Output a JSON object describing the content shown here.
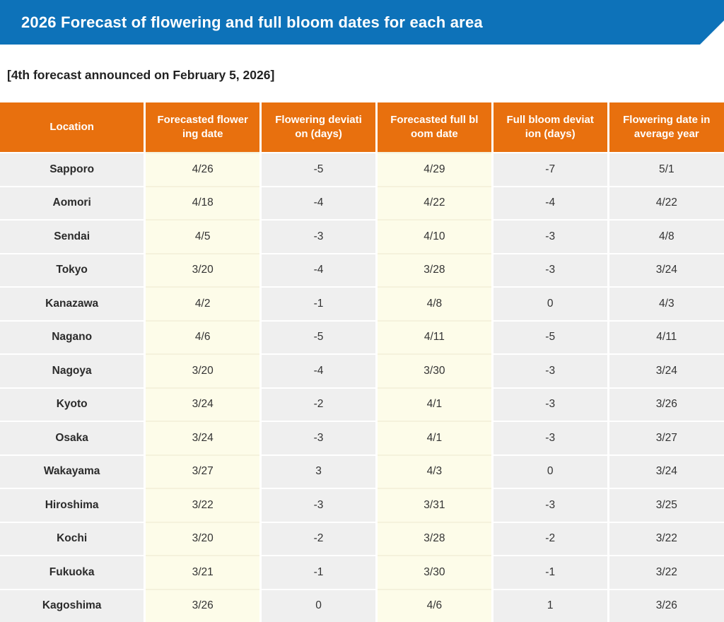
{
  "banner": {
    "title": "2026 Forecast of flowering and full bloom dates for each area",
    "bg_color": "#0d72b9"
  },
  "announcement": "[4th forecast announced on February 5, 2026]",
  "table": {
    "header_bg": "#e8700e",
    "gray_bg": "#efefef",
    "cream_bg": "#fdfce9",
    "columns": [
      {
        "key": "location",
        "label": "Location",
        "lines": "Location"
      },
      {
        "key": "forecasted_flowering_date",
        "label": "Forecasted flowering date",
        "lines": "Forecasted flower\ning date"
      },
      {
        "key": "flowering_deviation_days",
        "label": "Flowering deviation (days)",
        "lines": "Flowering deviati\non (days)"
      },
      {
        "key": "forecasted_full_bloom_date",
        "label": "Forecasted full bloom date",
        "lines": "Forecasted full bl\noom date"
      },
      {
        "key": "full_bloom_deviation_days",
        "label": "Full bloom deviation (days)",
        "lines": "Full bloom deviat\nion (days)"
      },
      {
        "key": "flowering_date_average_year",
        "label": "Flowering date in average year",
        "lines": "Flowering date in\naverage year"
      }
    ],
    "rows": [
      {
        "location": "Sapporo",
        "forecasted_flowering_date": "4/26",
        "flowering_deviation_days": "-5",
        "forecasted_full_bloom_date": "4/29",
        "full_bloom_deviation_days": "-7",
        "flowering_date_average_year": "5/1"
      },
      {
        "location": "Aomori",
        "forecasted_flowering_date": "4/18",
        "flowering_deviation_days": "-4",
        "forecasted_full_bloom_date": "4/22",
        "full_bloom_deviation_days": "-4",
        "flowering_date_average_year": "4/22"
      },
      {
        "location": "Sendai",
        "forecasted_flowering_date": "4/5",
        "flowering_deviation_days": "-3",
        "forecasted_full_bloom_date": "4/10",
        "full_bloom_deviation_days": "-3",
        "flowering_date_average_year": "4/8"
      },
      {
        "location": "Tokyo",
        "forecasted_flowering_date": "3/20",
        "flowering_deviation_days": "-4",
        "forecasted_full_bloom_date": "3/28",
        "full_bloom_deviation_days": "-3",
        "flowering_date_average_year": "3/24"
      },
      {
        "location": "Kanazawa",
        "forecasted_flowering_date": "4/2",
        "flowering_deviation_days": "-1",
        "forecasted_full_bloom_date": "4/8",
        "full_bloom_deviation_days": "0",
        "flowering_date_average_year": "4/3"
      },
      {
        "location": "Nagano",
        "forecasted_flowering_date": "4/6",
        "flowering_deviation_days": "-5",
        "forecasted_full_bloom_date": "4/11",
        "full_bloom_deviation_days": "-5",
        "flowering_date_average_year": "4/11"
      },
      {
        "location": "Nagoya",
        "forecasted_flowering_date": "3/20",
        "flowering_deviation_days": "-4",
        "forecasted_full_bloom_date": "3/30",
        "full_bloom_deviation_days": "-3",
        "flowering_date_average_year": "3/24"
      },
      {
        "location": "Kyoto",
        "forecasted_flowering_date": "3/24",
        "flowering_deviation_days": "-2",
        "forecasted_full_bloom_date": "4/1",
        "full_bloom_deviation_days": "-3",
        "flowering_date_average_year": "3/26"
      },
      {
        "location": "Osaka",
        "forecasted_flowering_date": "3/24",
        "flowering_deviation_days": "-3",
        "forecasted_full_bloom_date": "4/1",
        "full_bloom_deviation_days": "-3",
        "flowering_date_average_year": "3/27"
      },
      {
        "location": "Wakayama",
        "forecasted_flowering_date": "3/27",
        "flowering_deviation_days": "3",
        "forecasted_full_bloom_date": "4/3",
        "full_bloom_deviation_days": "0",
        "flowering_date_average_year": "3/24"
      },
      {
        "location": "Hiroshima",
        "forecasted_flowering_date": "3/22",
        "flowering_deviation_days": "-3",
        "forecasted_full_bloom_date": "3/31",
        "full_bloom_deviation_days": "-3",
        "flowering_date_average_year": "3/25"
      },
      {
        "location": "Kochi",
        "forecasted_flowering_date": "3/20",
        "flowering_deviation_days": "-2",
        "forecasted_full_bloom_date": "3/28",
        "full_bloom_deviation_days": "-2",
        "flowering_date_average_year": "3/22"
      },
      {
        "location": "Fukuoka",
        "forecasted_flowering_date": "3/21",
        "flowering_deviation_days": "-1",
        "forecasted_full_bloom_date": "3/30",
        "full_bloom_deviation_days": "-1",
        "flowering_date_average_year": "3/22"
      },
      {
        "location": "Kagoshima",
        "forecasted_flowering_date": "3/26",
        "flowering_deviation_days": "0",
        "forecasted_full_bloom_date": "4/6",
        "full_bloom_deviation_days": "1",
        "flowering_date_average_year": "3/26"
      }
    ]
  }
}
